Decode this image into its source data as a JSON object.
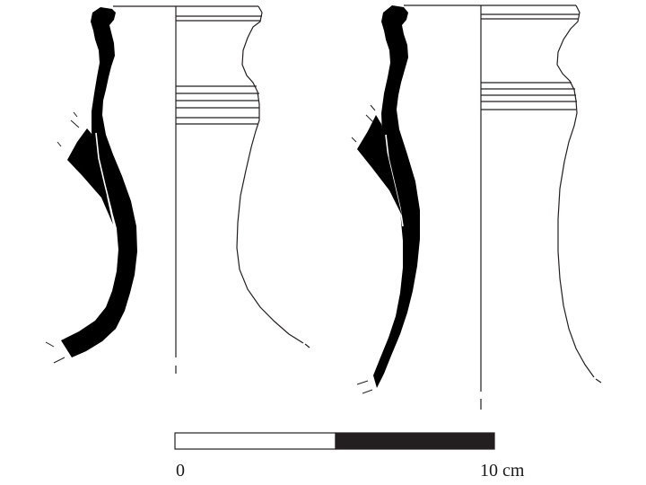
{
  "scale_bar": {
    "label_start": "0",
    "label_end": "10 cm",
    "colors": {
      "light_segment": "#ffffff",
      "dark_segment": "#231f20",
      "outline": "#231f20"
    }
  },
  "drawing": {
    "section_fill": "#000000",
    "line_color": "#231f20"
  }
}
